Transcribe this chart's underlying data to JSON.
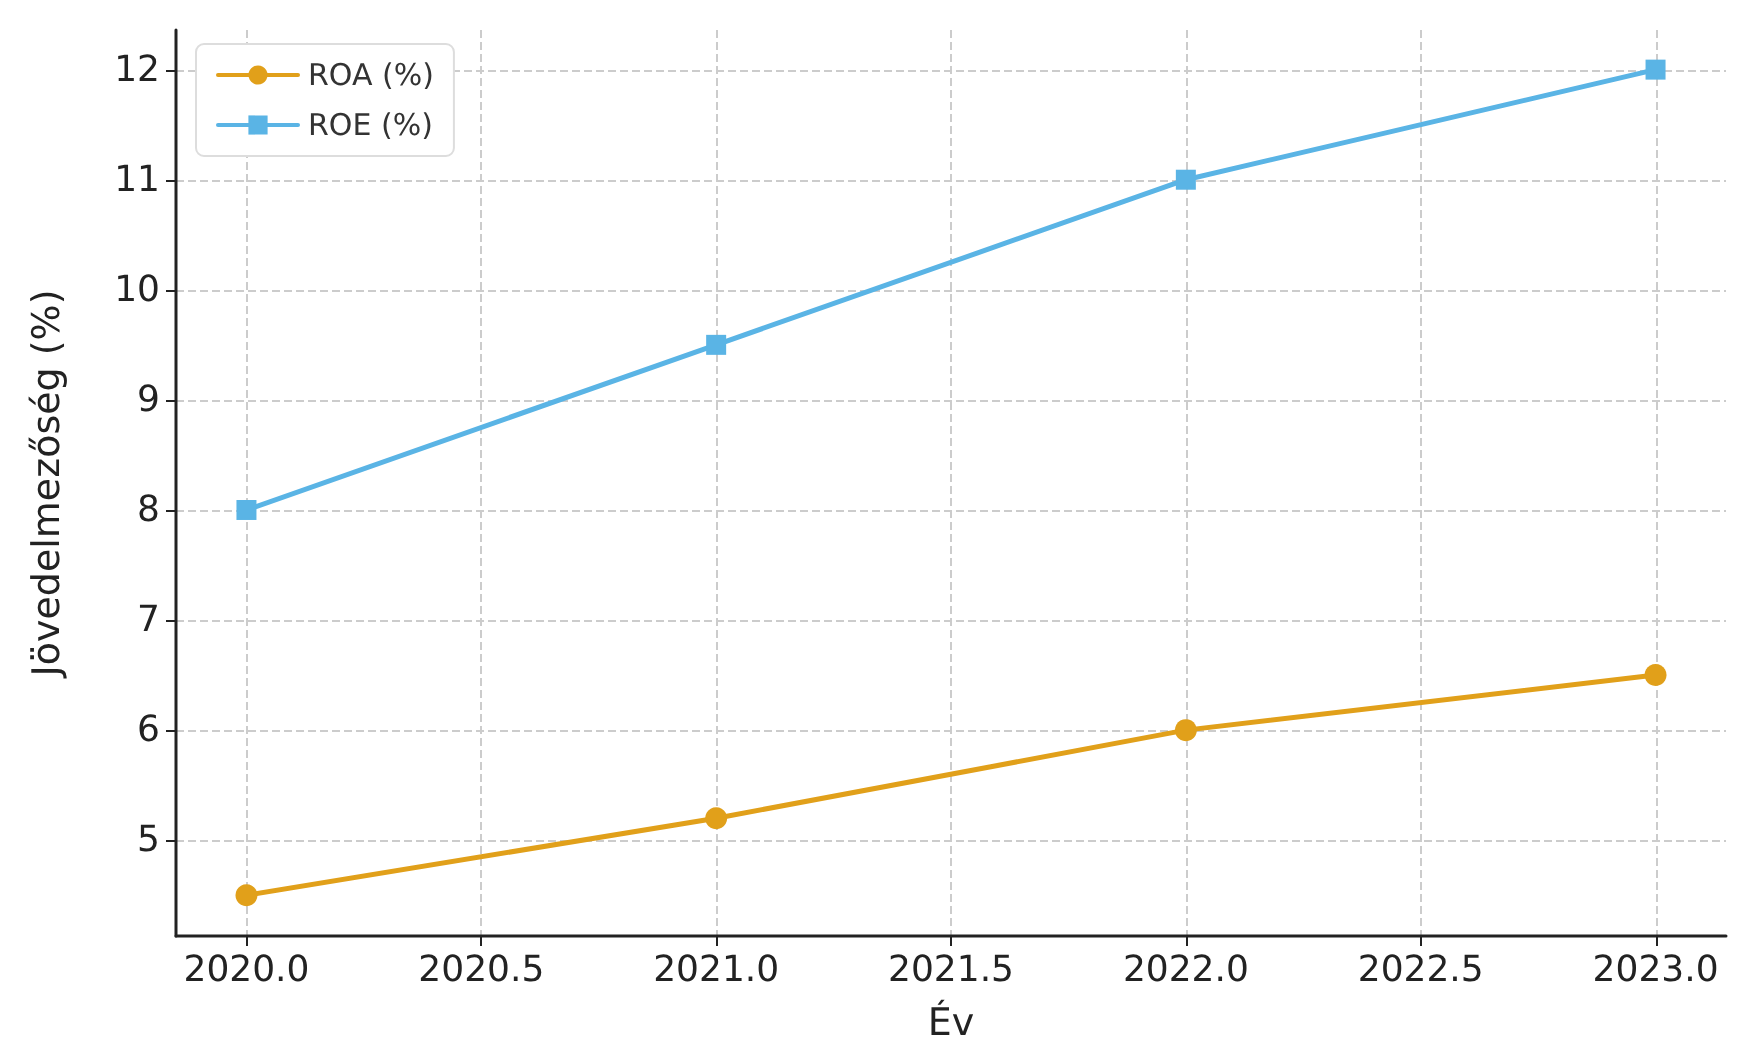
{
  "chart_data": {
    "type": "line",
    "xlabel": "Év",
    "ylabel": "Jövedelmezőség (%)",
    "x": [
      2020,
      2021,
      2022,
      2023
    ],
    "series": [
      {
        "name": "ROA (%)",
        "color": "#e1a01a",
        "values": [
          4.5,
          5.2,
          6.0,
          6.5
        ],
        "marker": "circle"
      },
      {
        "name": "ROE (%)",
        "color": "#5ab4e5",
        "values": [
          8,
          9.5,
          11,
          12
        ],
        "marker": "square"
      }
    ],
    "xlim": [
      2019.85,
      2023.15
    ],
    "xticks": [
      {
        "value": 2020,
        "label": "2020.0"
      },
      {
        "value": 2020.5,
        "label": "2020.5"
      },
      {
        "value": 2021,
        "label": "2021.0"
      },
      {
        "value": 2021.5,
        "label": "2021.5"
      },
      {
        "value": 2022,
        "label": "2022.0"
      },
      {
        "value": 2022.5,
        "label": "2022.5"
      },
      {
        "value": 2023,
        "label": "2023.0"
      }
    ],
    "ylim": [
      4.13,
      12.36
    ],
    "yticks": [
      5,
      6,
      7,
      8,
      9,
      10,
      11,
      12
    ],
    "grid": true,
    "legend": "top left",
    "line_style": "solid"
  }
}
